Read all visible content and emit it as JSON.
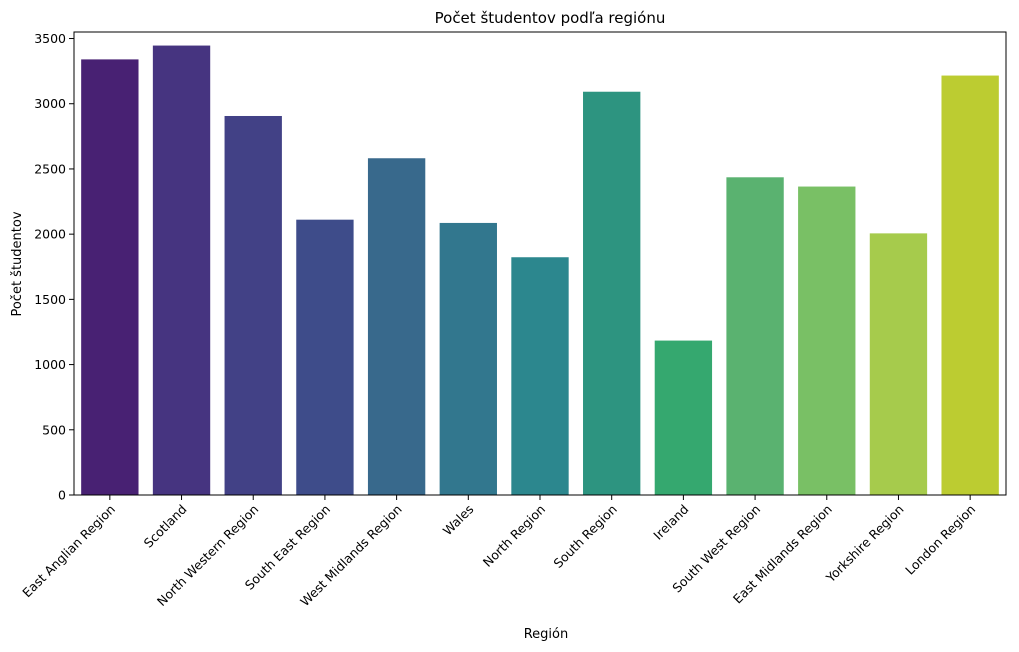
{
  "chart_data": {
    "type": "bar",
    "title": "Počet študentov podľa regiónu",
    "xlabel": "Región",
    "ylabel": "Počet študentov",
    "ylim": [
      0,
      3550
    ],
    "yticks": [
      0,
      500,
      1000,
      1500,
      2000,
      2500,
      3000,
      3500
    ],
    "grid": false,
    "categories": [
      "East Anglian Region",
      "Scotland",
      "North Western Region",
      "South East Region",
      "West Midlands Region",
      "Wales",
      "North Region",
      "South Region",
      "Ireland",
      "South West Region",
      "East Midlands Region",
      "Yorkshire Region",
      "London Region"
    ],
    "values": [
      3340,
      3446,
      2906,
      2111,
      2582,
      2086,
      1823,
      3092,
      1184,
      2436,
      2365,
      2006,
      3216
    ],
    "colors": [
      "#482173",
      "#463480",
      "#424186",
      "#3e4c8a",
      "#38698c",
      "#32778e",
      "#2c878e",
      "#2d9480",
      "#35a86f",
      "#5ab270",
      "#79c065",
      "#a6cb4c",
      "#bccc31"
    ]
  }
}
